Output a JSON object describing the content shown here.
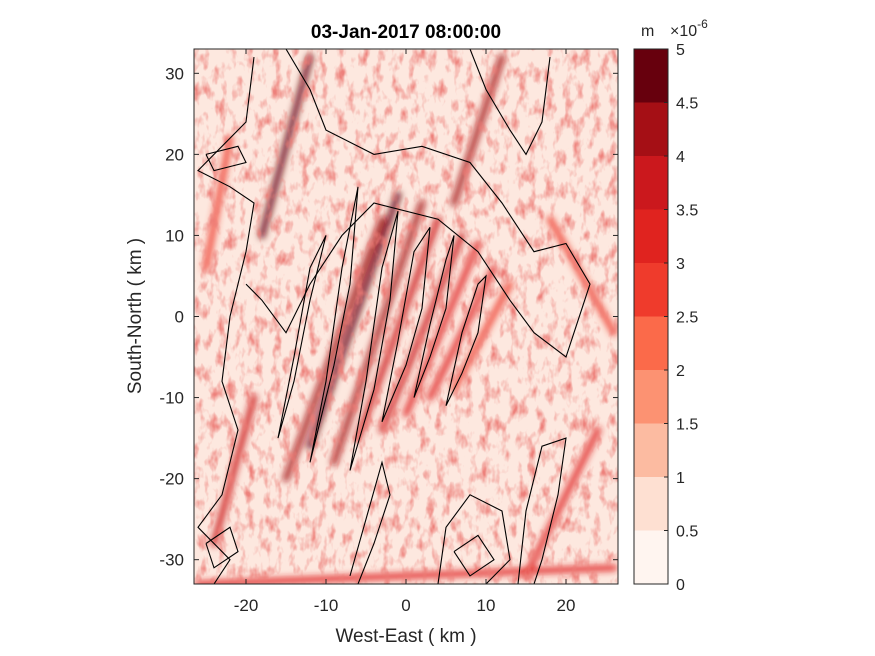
{
  "chart_data": {
    "type": "heatmap",
    "title": "03-Jan-2017 08:00:00",
    "xlabel": "West-East ( km )",
    "ylabel": "South-North ( km )",
    "xlim": [
      -26.5,
      26.5
    ],
    "ylim": [
      -33,
      33
    ],
    "xticks": [
      -20,
      -10,
      0,
      10,
      20
    ],
    "xtick_labels": [
      "-20",
      "-10",
      "0",
      "10",
      "20"
    ],
    "yticks": [
      -30,
      -20,
      -10,
      0,
      10,
      20,
      30
    ],
    "ytick_labels": [
      "-30",
      "-20",
      "-10",
      "0",
      "10",
      "20",
      "30"
    ],
    "grid": false,
    "colormap": "white-to-dark-red",
    "contour_overlay_color": "#000000",
    "colorbar": {
      "unit": "m",
      "exponent_label": "×10",
      "exponent_power": "-6",
      "levels": [
        0,
        0.5,
        1,
        1.5,
        2,
        2.5,
        3,
        3.5,
        4,
        4.5,
        5
      ],
      "tick_labels": [
        "0",
        "0.5",
        "1",
        "1.5",
        "2",
        "2.5",
        "3",
        "3.5",
        "4",
        "4.5",
        "5"
      ],
      "colors": [
        "#fff5f0",
        "#fee0d2",
        "#fcbba1",
        "#fc9272",
        "#fb6a4a",
        "#ef3b2c",
        "#e0231f",
        "#cb181d",
        "#a50f15",
        "#67000d"
      ]
    },
    "streaks": [
      {
        "x0": -15,
        "y0": -20,
        "x1": -3,
        "y1": 12,
        "v": 4.2
      },
      {
        "x0": -12,
        "y0": -16,
        "x1": -1,
        "y1": 15,
        "v": 4.5
      },
      {
        "x0": -9,
        "y0": -18,
        "x1": 2,
        "y1": 14,
        "v": 4.0
      },
      {
        "x0": -6,
        "y0": -15,
        "x1": 4,
        "y1": 12,
        "v": 3.8
      },
      {
        "x0": -3,
        "y0": -14,
        "x1": 7,
        "y1": 10,
        "v": 3.6
      },
      {
        "x0": 0,
        "y0": -12,
        "x1": 9,
        "y1": 9,
        "v": 3.4
      },
      {
        "x0": 3,
        "y0": -10,
        "x1": 11,
        "y1": 6,
        "v": 3.0
      },
      {
        "x0": 6,
        "y0": -9,
        "x1": 13,
        "y1": 4,
        "v": 2.8
      },
      {
        "x0": -18,
        "y0": 10,
        "x1": -12,
        "y1": 32,
        "v": 4.6
      },
      {
        "x0": 6,
        "y0": 14,
        "x1": 12,
        "y1": 32,
        "v": 4.2
      },
      {
        "x0": -24,
        "y0": -28,
        "x1": -19,
        "y1": -10,
        "v": 3.6
      },
      {
        "x0": -25,
        "y0": 6,
        "x1": -22,
        "y1": 22,
        "v": 2.6
      },
      {
        "x0": 15,
        "y0": -32,
        "x1": 24,
        "y1": -14,
        "v": 3.2
      },
      {
        "x0": -26,
        "y0": -33,
        "x1": 26,
        "y1": -31,
        "v": 3.4
      },
      {
        "x0": 18,
        "y0": 12,
        "x1": 26,
        "y1": -2,
        "v": 2.6
      }
    ],
    "contours": [
      [
        [
          -19,
          32
        ],
        [
          -20,
          24
        ],
        [
          -24,
          20
        ],
        [
          -26,
          18
        ],
        [
          -22,
          16
        ],
        [
          -19,
          14
        ],
        [
          -20,
          8
        ],
        [
          -22,
          0
        ],
        [
          -23,
          -8
        ],
        [
          -21,
          -14
        ],
        [
          -23,
          -22
        ],
        [
          -26,
          -26
        ],
        [
          -22,
          -30
        ],
        [
          -24,
          -33
        ]
      ],
      [
        [
          -15,
          33
        ],
        [
          -12,
          28
        ],
        [
          -10,
          23
        ],
        [
          -4,
          20
        ],
        [
          2,
          21
        ],
        [
          8,
          19
        ],
        [
          12,
          14
        ],
        [
          16,
          8
        ],
        [
          20,
          9
        ],
        [
          23,
          4
        ],
        [
          21,
          -2
        ],
        [
          20,
          -5
        ],
        [
          16,
          -2
        ],
        [
          13,
          2
        ],
        [
          9,
          8
        ],
        [
          4,
          12
        ],
        [
          -4,
          14
        ],
        [
          -8,
          10
        ],
        [
          -12,
          4
        ],
        [
          -15,
          -2
        ],
        [
          -18,
          2
        ],
        [
          -20,
          4
        ]
      ],
      [
        [
          8,
          33
        ],
        [
          10,
          28
        ],
        [
          13,
          23
        ],
        [
          15,
          20
        ],
        [
          17,
          24
        ],
        [
          18,
          32
        ]
      ],
      [
        [
          -12,
          -18
        ],
        [
          -10,
          -8
        ],
        [
          -8,
          6
        ],
        [
          -6,
          16
        ],
        [
          -7,
          4
        ],
        [
          -9,
          -6
        ],
        [
          -12,
          -18
        ]
      ],
      [
        [
          -7,
          -19
        ],
        [
          -5,
          -8
        ],
        [
          -3,
          6
        ],
        [
          -1,
          13
        ],
        [
          -2,
          2
        ],
        [
          -4,
          -9
        ],
        [
          -7,
          -19
        ]
      ],
      [
        [
          -3,
          -13
        ],
        [
          -1,
          -3
        ],
        [
          1,
          8
        ],
        [
          3,
          11
        ],
        [
          2,
          1
        ],
        [
          0,
          -6
        ],
        [
          -3,
          -13
        ]
      ],
      [
        [
          1,
          -10
        ],
        [
          3,
          -1
        ],
        [
          5,
          7
        ],
        [
          6,
          10
        ],
        [
          5,
          1
        ],
        [
          3,
          -5
        ],
        [
          1,
          -10
        ]
      ],
      [
        [
          5,
          -11
        ],
        [
          7,
          -2
        ],
        [
          9,
          4
        ],
        [
          10,
          5
        ],
        [
          9,
          -2
        ],
        [
          7,
          -7
        ],
        [
          5,
          -11
        ]
      ],
      [
        [
          -16,
          -15
        ],
        [
          -14,
          -5
        ],
        [
          -12,
          6
        ],
        [
          -10,
          10
        ],
        [
          -12,
          2
        ],
        [
          -14,
          -8
        ],
        [
          -16,
          -15
        ]
      ],
      [
        [
          -7,
          -32
        ],
        [
          -5,
          -25
        ],
        [
          -3,
          -18
        ],
        [
          -2,
          -22
        ],
        [
          -4,
          -28
        ],
        [
          -6,
          -33
        ]
      ],
      [
        [
          4,
          -33
        ],
        [
          5,
          -26
        ],
        [
          8,
          -22
        ],
        [
          12,
          -24
        ],
        [
          13,
          -30
        ],
        [
          10,
          -33
        ]
      ],
      [
        [
          6,
          -29
        ],
        [
          9,
          -27
        ],
        [
          11,
          -30
        ],
        [
          8,
          -32
        ],
        [
          6,
          -29
        ]
      ],
      [
        [
          14,
          -33
        ],
        [
          15,
          -24
        ],
        [
          17,
          -16
        ],
        [
          20,
          -15
        ],
        [
          19,
          -22
        ],
        [
          17,
          -30
        ],
        [
          16,
          -33
        ]
      ],
      [
        [
          -25,
          -28
        ],
        [
          -22,
          -26
        ],
        [
          -21,
          -29
        ],
        [
          -24,
          -31
        ],
        [
          -25,
          -28
        ]
      ],
      [
        [
          -25,
          20
        ],
        [
          -21,
          21
        ],
        [
          -20,
          19
        ],
        [
          -24,
          18
        ],
        [
          -25,
          20
        ]
      ]
    ]
  }
}
